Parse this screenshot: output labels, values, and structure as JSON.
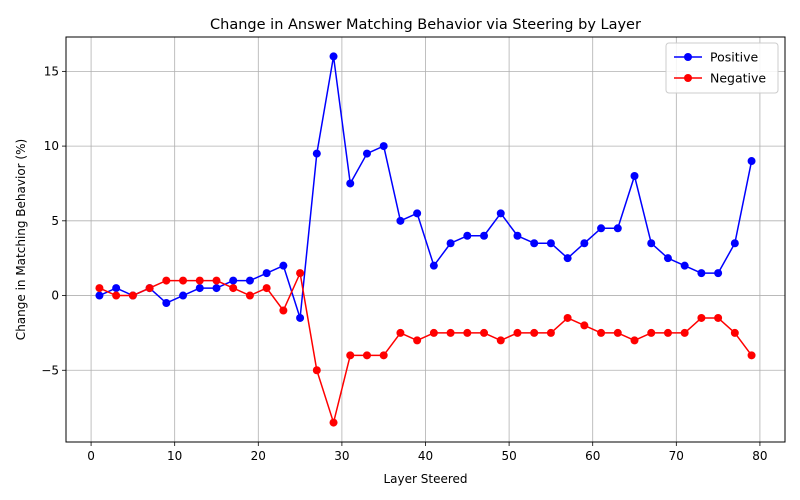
{
  "chart_data": {
    "type": "line",
    "title": "Change in Answer Matching Behavior via Steering by Layer",
    "xlabel": "Layer Steered",
    "ylabel": "Change in Matching Behavior (%)",
    "xlim": [
      -3,
      83
    ],
    "ylim": [
      -9.8,
      17.3
    ],
    "xticks": [
      0,
      10,
      20,
      30,
      40,
      50,
      60,
      70,
      80
    ],
    "yticks": [
      -5,
      0,
      5,
      10,
      15
    ],
    "grid": true,
    "legend_position": "top-right",
    "x": [
      1,
      3,
      5,
      7,
      9,
      11,
      13,
      15,
      17,
      19,
      21,
      23,
      25,
      27,
      29,
      31,
      33,
      35,
      37,
      39,
      41,
      43,
      45,
      47,
      49,
      51,
      53,
      55,
      57,
      59,
      61,
      63,
      65,
      67,
      69,
      71,
      73,
      75,
      77,
      79
    ],
    "series": [
      {
        "name": "Positive",
        "color": "#0000ff",
        "values": [
          0,
          0.5,
          0,
          0.5,
          -0.5,
          0,
          0.5,
          0.5,
          1,
          1,
          1.5,
          2,
          -1.5,
          9.5,
          16,
          7.5,
          9.5,
          10,
          5,
          5.5,
          2,
          3.5,
          4,
          4,
          5.5,
          4,
          3.5,
          3.5,
          2.5,
          3.5,
          4.5,
          4.5,
          8,
          3.5,
          2.5,
          2,
          1.5,
          1.5,
          3.5,
          9
        ]
      },
      {
        "name": "Negative",
        "color": "#ff0000",
        "values": [
          0.5,
          0,
          0,
          0.5,
          1,
          1,
          1,
          1,
          0.5,
          0,
          0.5,
          -1,
          1.5,
          -5,
          -8.5,
          -4,
          -4,
          -4,
          -2.5,
          -3,
          -2.5,
          -2.5,
          -2.5,
          -2.5,
          -3,
          -2.5,
          -2.5,
          -2.5,
          -1.5,
          -2,
          -2.5,
          -2.5,
          -3,
          -2.5,
          -2.5,
          -2.5,
          -1.5,
          -1.5,
          -2.5,
          -4
        ]
      }
    ]
  }
}
